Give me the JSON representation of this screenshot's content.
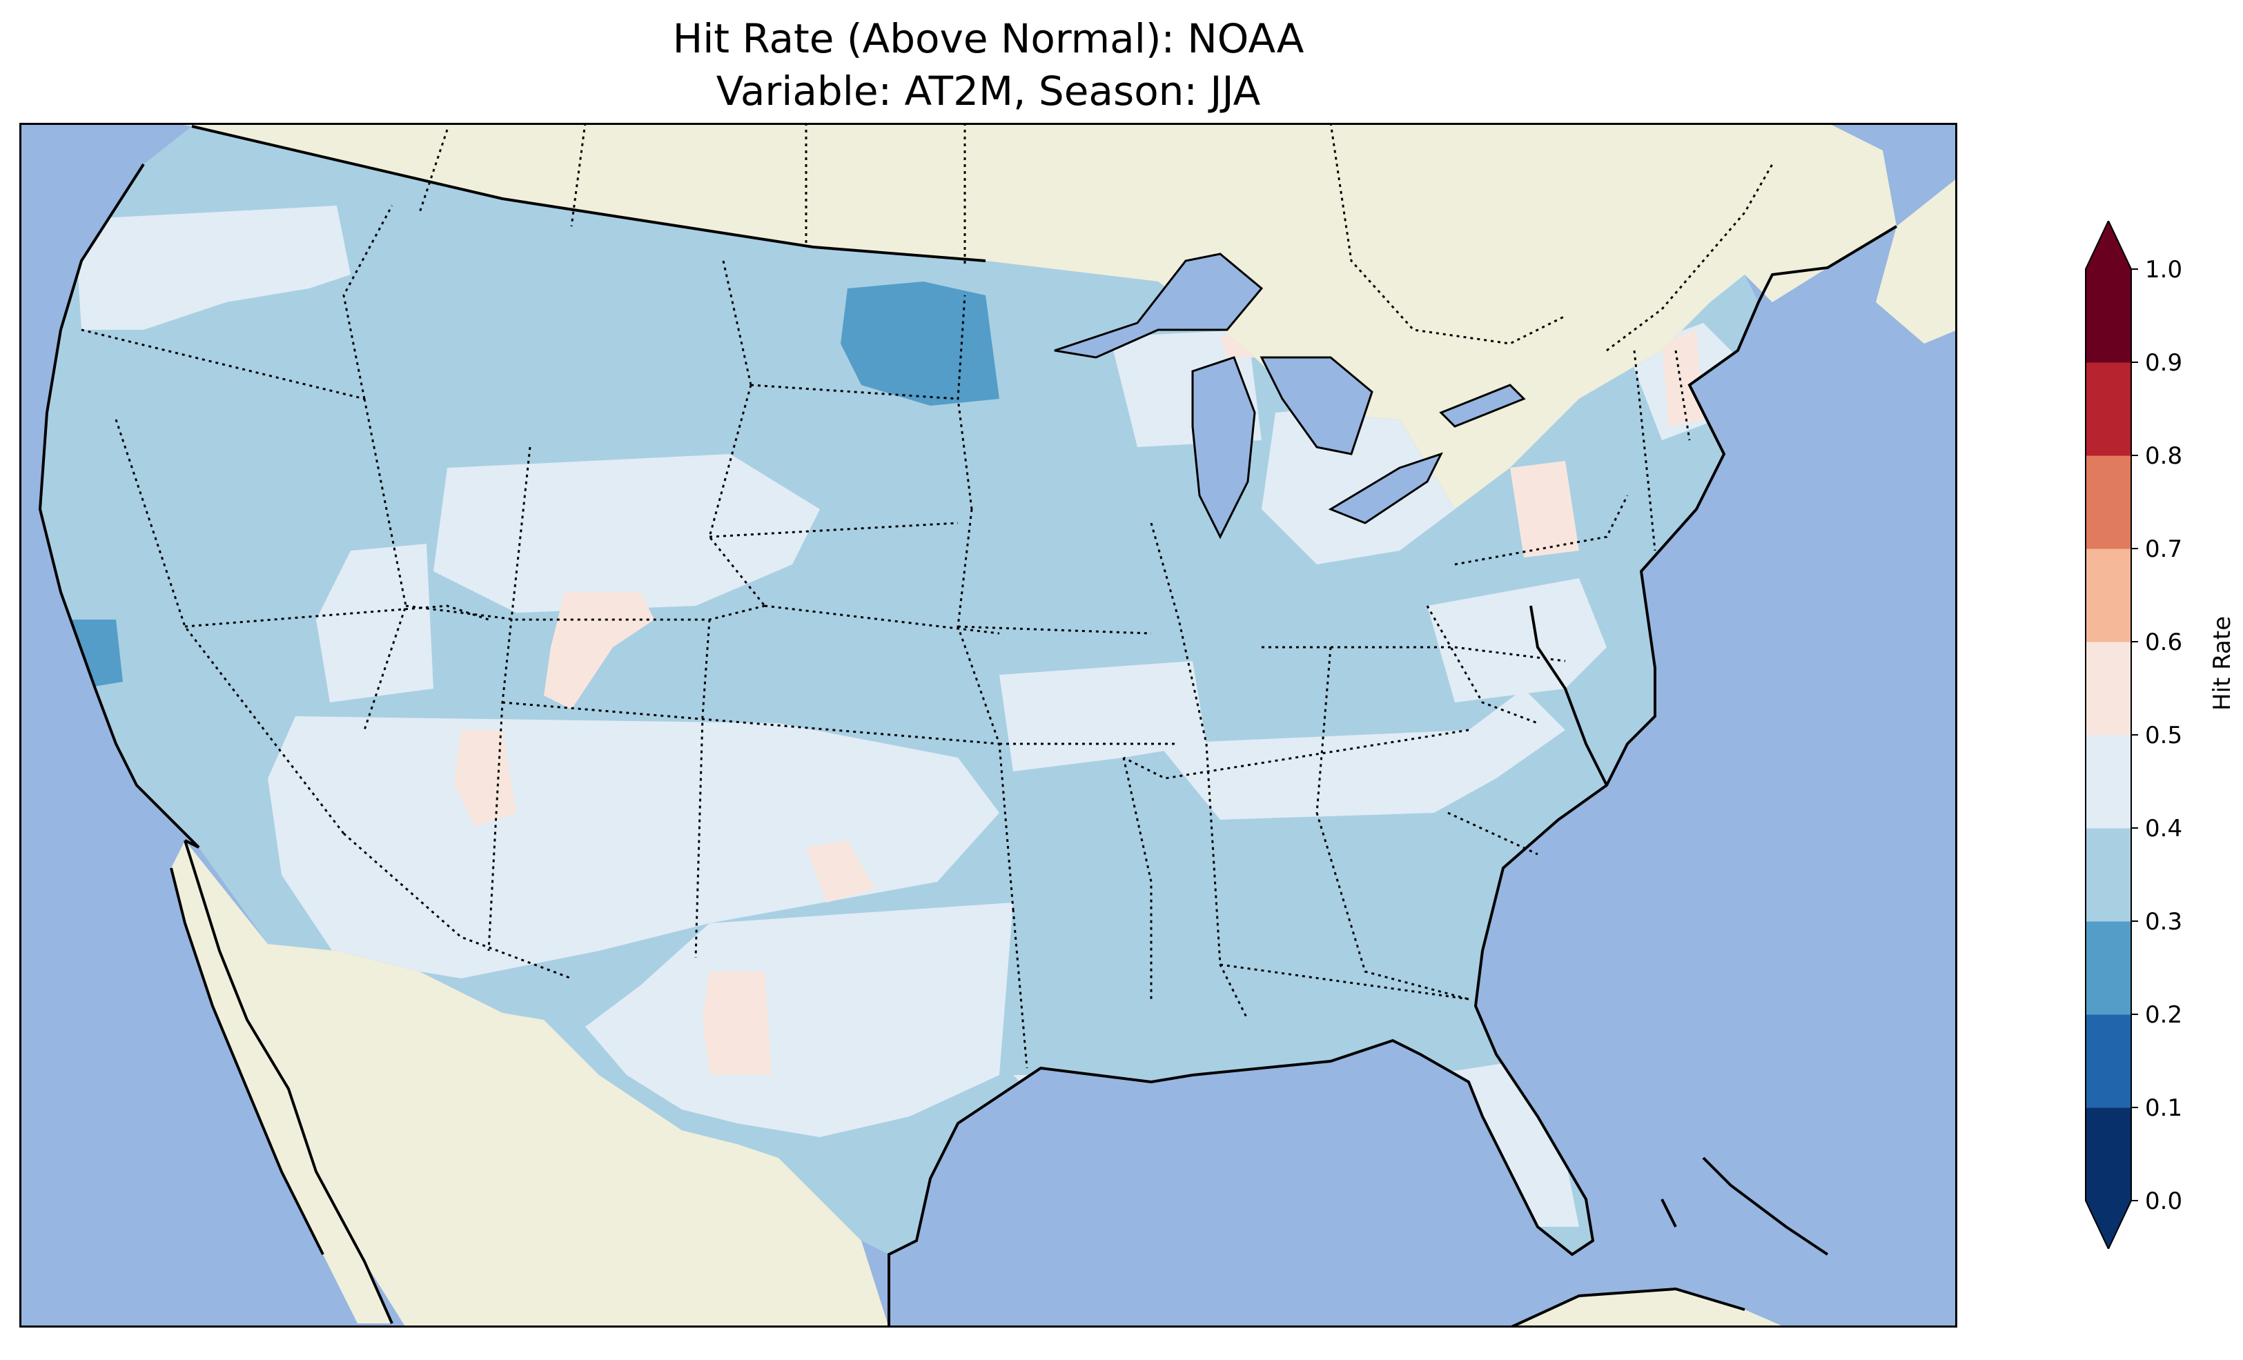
{
  "title": {
    "line1": "Hit Rate (Above Normal): NOAA",
    "line2": "Variable: AT2M, Season: JJA"
  },
  "map": {
    "ocean_color": "#97b6e1",
    "land_color": "#efefdb",
    "lake_color": "#97b6e1"
  },
  "colorbar": {
    "label": "Hit Rate",
    "extend": "both",
    "ticks": [
      "0.0",
      "0.1",
      "0.2",
      "0.3",
      "0.4",
      "0.5",
      "0.6",
      "0.7",
      "0.8",
      "0.9",
      "1.0"
    ],
    "colors": [
      "#053061",
      "#2166ac",
      "#4393c3",
      "#92c5de",
      "#d1e5f0",
      "#fddbc7",
      "#f4a582",
      "#d6604d",
      "#b2182b",
      "#67001f"
    ],
    "bins": [
      {
        "range": "0.0-0.1",
        "color": "#08306b"
      },
      {
        "range": "0.1-0.2",
        "color": "#2166ac"
      },
      {
        "range": "0.2-0.3",
        "color": "#539dc8"
      },
      {
        "range": "0.3-0.4",
        "color": "#a9cfe3"
      },
      {
        "range": "0.4-0.5",
        "color": "#e1ecf4"
      },
      {
        "range": "0.5-0.6",
        "color": "#f8e6de"
      },
      {
        "range": "0.6-0.7",
        "color": "#f5b899"
      },
      {
        "range": "0.7-0.8",
        "color": "#e07b5e"
      },
      {
        "range": "0.8-0.9",
        "color": "#b7232f"
      },
      {
        "range": "0.9-1.0",
        "color": "#6a0020"
      }
    ]
  }
}
